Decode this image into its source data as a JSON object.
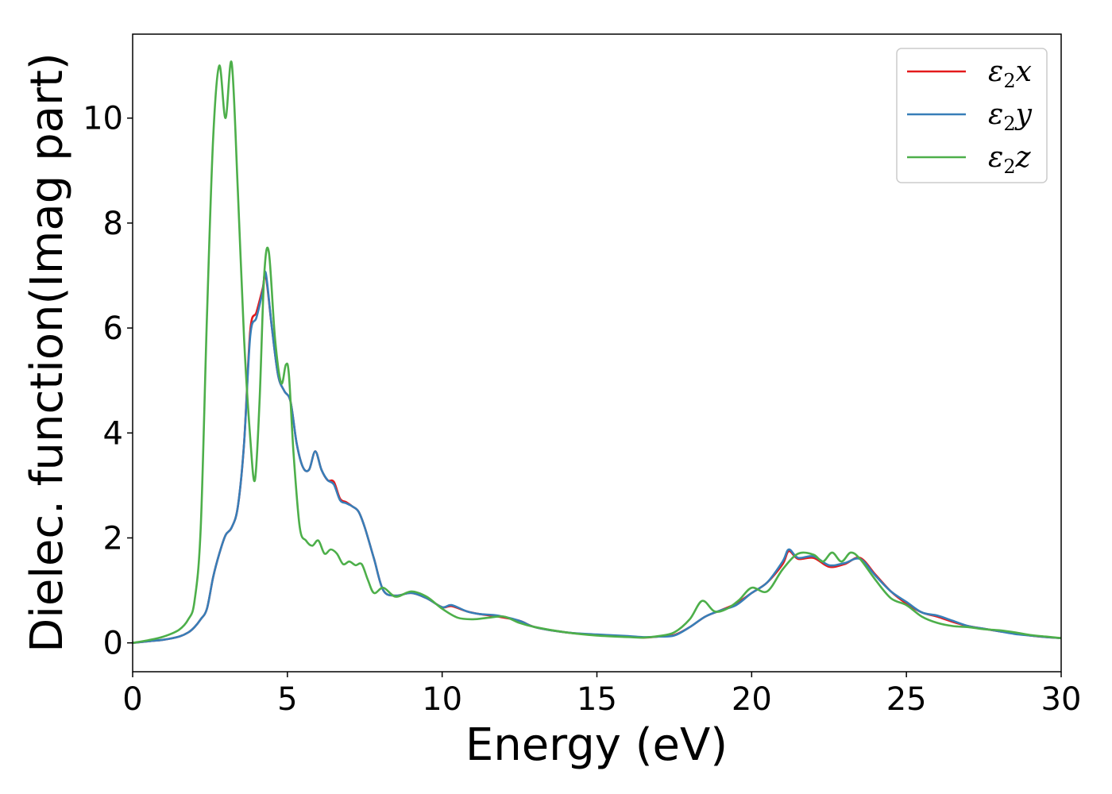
{
  "chart_data": {
    "type": "line",
    "xlabel": "Energy (eV)",
    "ylabel": "Dielec. function(Imag part)",
    "xlim": [
      0,
      30
    ],
    "ylim": [
      -0.55,
      11.6
    ],
    "xticks": [
      0,
      5,
      10,
      15,
      20,
      25,
      30
    ],
    "yticks": [
      0,
      2,
      4,
      6,
      8,
      10
    ],
    "grid": false,
    "legend_position": "top-right",
    "series": [
      {
        "name": "ε2x",
        "legend": {
          "base": "ε",
          "sub": "2",
          "suffix": "x"
        },
        "color": "#e41a1c",
        "x": [
          0,
          0.5,
          1.0,
          1.5,
          1.8,
          2.0,
          2.2,
          2.4,
          2.6,
          2.8,
          3.0,
          3.2,
          3.4,
          3.6,
          3.8,
          4.0,
          4.2,
          4.3,
          4.5,
          4.7,
          4.9,
          5.1,
          5.3,
          5.5,
          5.7,
          5.9,
          6.1,
          6.3,
          6.5,
          6.7,
          6.9,
          7.1,
          7.3,
          7.5,
          7.8,
          8.1,
          8.5,
          9.0,
          9.5,
          10.0,
          10.3,
          10.8,
          11.2,
          11.8,
          12.5,
          13.0,
          14.0,
          15.0,
          16.0,
          16.5,
          17.0,
          17.5,
          18.0,
          18.5,
          19.0,
          19.5,
          20.0,
          20.5,
          21.0,
          21.2,
          21.5,
          22.0,
          22.5,
          23.0,
          23.5,
          24.0,
          24.5,
          25.0,
          25.5,
          26.0,
          26.5,
          27.0,
          27.5,
          28.0,
          28.5,
          29.0,
          29.5,
          30.0
        ],
        "y": [
          0.0,
          0.03,
          0.06,
          0.12,
          0.2,
          0.3,
          0.45,
          0.65,
          1.25,
          1.7,
          2.05,
          2.2,
          2.6,
          3.8,
          5.95,
          6.3,
          6.75,
          7.0,
          6.0,
          5.1,
          4.8,
          4.6,
          3.8,
          3.35,
          3.3,
          3.65,
          3.3,
          3.1,
          3.07,
          2.75,
          2.68,
          2.6,
          2.5,
          2.2,
          1.6,
          1.0,
          0.9,
          0.95,
          0.85,
          0.68,
          0.7,
          0.6,
          0.55,
          0.5,
          0.42,
          0.3,
          0.2,
          0.15,
          0.12,
          0.1,
          0.12,
          0.15,
          0.3,
          0.5,
          0.62,
          0.75,
          0.95,
          1.15,
          1.5,
          1.75,
          1.6,
          1.62,
          1.45,
          1.5,
          1.62,
          1.3,
          0.98,
          0.75,
          0.58,
          0.5,
          0.4,
          0.32,
          0.27,
          0.22,
          0.18,
          0.14,
          0.11,
          0.09
        ]
      },
      {
        "name": "ε2y",
        "legend": {
          "base": "ε",
          "sub": "2",
          "suffix": "y"
        },
        "color": "#377eb8",
        "x": [
          0,
          0.5,
          1.0,
          1.5,
          1.8,
          2.0,
          2.2,
          2.4,
          2.6,
          2.8,
          3.0,
          3.2,
          3.4,
          3.6,
          3.8,
          4.0,
          4.2,
          4.3,
          4.5,
          4.7,
          4.9,
          5.1,
          5.3,
          5.5,
          5.7,
          5.9,
          6.1,
          6.3,
          6.5,
          6.7,
          6.9,
          7.1,
          7.3,
          7.5,
          7.8,
          8.1,
          8.5,
          9.0,
          9.5,
          10.0,
          10.3,
          10.8,
          11.2,
          11.8,
          12.5,
          13.0,
          14.0,
          15.0,
          16.0,
          16.5,
          17.0,
          17.5,
          18.0,
          18.5,
          19.0,
          19.5,
          20.0,
          20.5,
          21.0,
          21.2,
          21.5,
          22.0,
          22.5,
          23.0,
          23.5,
          24.0,
          24.5,
          25.0,
          25.5,
          26.0,
          26.5,
          27.0,
          27.5,
          28.0,
          28.5,
          29.0,
          29.5,
          30.0
        ],
        "y": [
          0.0,
          0.03,
          0.06,
          0.12,
          0.2,
          0.3,
          0.45,
          0.65,
          1.25,
          1.7,
          2.05,
          2.2,
          2.6,
          3.8,
          5.85,
          6.2,
          6.7,
          7.05,
          6.0,
          5.1,
          4.8,
          4.6,
          3.8,
          3.35,
          3.3,
          3.65,
          3.3,
          3.1,
          3.02,
          2.72,
          2.66,
          2.6,
          2.5,
          2.2,
          1.6,
          1.0,
          0.9,
          0.95,
          0.85,
          0.68,
          0.72,
          0.6,
          0.55,
          0.52,
          0.42,
          0.3,
          0.2,
          0.16,
          0.13,
          0.11,
          0.12,
          0.14,
          0.3,
          0.5,
          0.62,
          0.72,
          0.95,
          1.15,
          1.55,
          1.78,
          1.62,
          1.65,
          1.48,
          1.52,
          1.6,
          1.28,
          0.98,
          0.78,
          0.58,
          0.52,
          0.42,
          0.32,
          0.27,
          0.22,
          0.17,
          0.14,
          0.11,
          0.09
        ]
      },
      {
        "name": "ε2z",
        "legend": {
          "base": "ε",
          "sub": "2",
          "suffix": "z"
        },
        "color": "#4daf4a",
        "x": [
          0,
          0.5,
          1.0,
          1.5,
          1.8,
          2.0,
          2.2,
          2.4,
          2.6,
          2.8,
          3.0,
          3.2,
          3.4,
          3.6,
          3.8,
          3.95,
          4.1,
          4.25,
          4.4,
          4.6,
          4.8,
          4.95,
          5.05,
          5.2,
          5.4,
          5.6,
          5.8,
          6.0,
          6.2,
          6.4,
          6.6,
          6.8,
          7.0,
          7.2,
          7.4,
          7.6,
          7.8,
          8.1,
          8.5,
          9.0,
          9.5,
          10.0,
          10.5,
          11.0,
          11.5,
          12.0,
          12.5,
          13.0,
          14.0,
          15.0,
          16.0,
          16.5,
          17.0,
          17.5,
          18.0,
          18.4,
          18.8,
          19.2,
          19.6,
          20.0,
          20.5,
          21.0,
          21.5,
          22.0,
          22.3,
          22.6,
          22.9,
          23.2,
          23.5,
          24.0,
          24.5,
          25.0,
          25.5,
          26.0,
          26.5,
          27.0,
          27.5,
          28.0,
          28.5,
          29.0,
          29.5,
          30.0
        ],
        "y": [
          0.0,
          0.05,
          0.12,
          0.25,
          0.45,
          0.8,
          2.2,
          6.2,
          9.6,
          11.0,
          10.0,
          11.05,
          8.6,
          5.8,
          3.9,
          3.1,
          4.6,
          7.0,
          7.45,
          5.8,
          4.95,
          5.3,
          5.1,
          3.6,
          2.2,
          1.95,
          1.85,
          1.95,
          1.7,
          1.78,
          1.7,
          1.5,
          1.55,
          1.48,
          1.5,
          1.2,
          0.95,
          1.05,
          0.88,
          0.98,
          0.88,
          0.65,
          0.48,
          0.45,
          0.48,
          0.5,
          0.38,
          0.3,
          0.2,
          0.14,
          0.11,
          0.1,
          0.13,
          0.2,
          0.45,
          0.8,
          0.6,
          0.65,
          0.82,
          1.05,
          0.98,
          1.4,
          1.7,
          1.68,
          1.55,
          1.72,
          1.55,
          1.72,
          1.6,
          1.2,
          0.85,
          0.72,
          0.5,
          0.38,
          0.32,
          0.3,
          0.26,
          0.24,
          0.2,
          0.15,
          0.12,
          0.09
        ]
      }
    ]
  }
}
